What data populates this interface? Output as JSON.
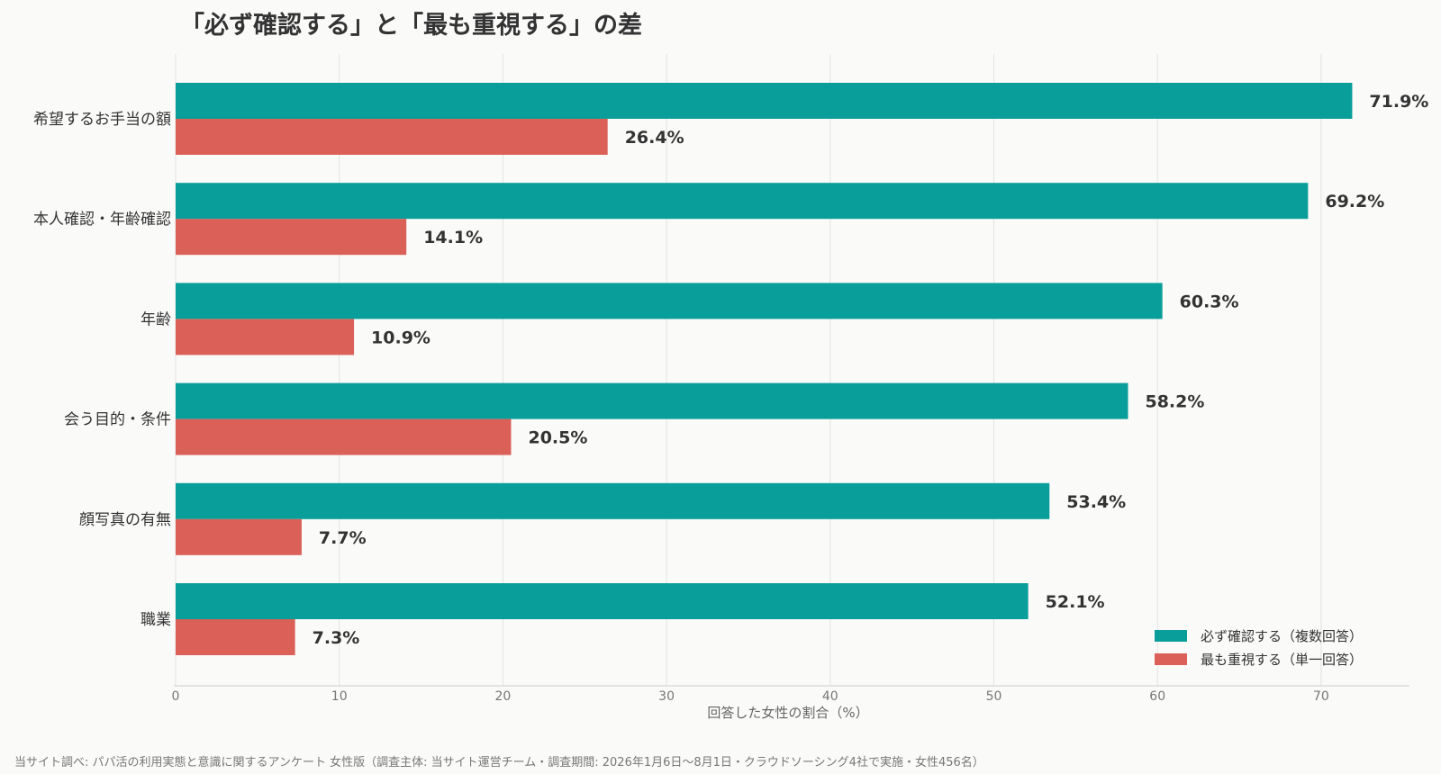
{
  "chart_data": {
    "type": "bar",
    "orientation": "horizontal",
    "title": "「必ず確認する」と「最も重視する」の差",
    "xlabel": "回答した女性の割合（%）",
    "ylabel": "",
    "xlim": [
      0,
      75
    ],
    "xticks": [
      0,
      10,
      20,
      30,
      40,
      50,
      60,
      70
    ],
    "grid": true,
    "legend_position": "bottom-right",
    "categories": [
      "希望するお手当の額",
      "本人確認・年齢確認",
      "年齢",
      "会う目的・条件",
      "顔写真の有無",
      "職業"
    ],
    "series": [
      {
        "name": "必ず確認する（複数回答）",
        "color": "#0a9e9a",
        "values": [
          71.9,
          69.2,
          60.3,
          58.2,
          53.4,
          52.1
        ],
        "labels": [
          "71.9%",
          "69.2%",
          "60.3%",
          "58.2%",
          "53.4%",
          "52.1%"
        ]
      },
      {
        "name": "最も重視する（単一回答）",
        "color": "#db6058",
        "values": [
          26.4,
          14.1,
          10.9,
          20.5,
          7.7,
          7.3
        ],
        "labels": [
          "26.4%",
          "14.1%",
          "10.9%",
          "20.5%",
          "7.7%",
          "7.3%"
        ]
      }
    ]
  },
  "source_note": "当サイト調べ: パパ活の利用実態と意識に関するアンケート 女性版（調査主体: 当サイト運営チーム・調査期間: 2026年1月6日〜8月1日・クラウドソーシング4社で実施・女性456名）"
}
